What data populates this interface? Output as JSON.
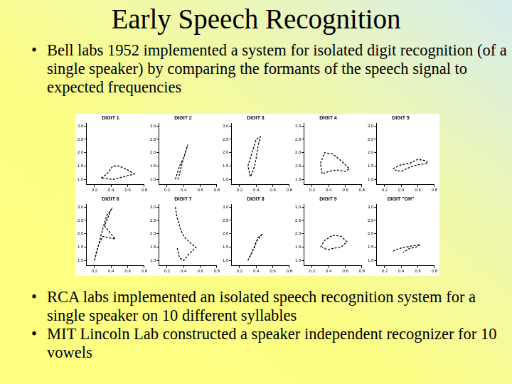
{
  "title": "Early Speech Recognition",
  "bullets": [
    "Bell labs 1952 implemented a system for isolated digit recognition (of a single speaker) by comparing the formants of the speech signal to expected frequencies",
    "RCA labs implemented an isolated speech recognition system for a single speaker on 10 different syllables",
    "MIT Lincoln Lab constructed a speaker independent recognizer for 10 vowels"
  ],
  "chart_data": [
    {
      "type": "line",
      "title": "DIGIT 1",
      "color": "#000000",
      "line_style": "dashed",
      "grid": false,
      "x": [
        0.28,
        0.35,
        0.42,
        0.5,
        0.6,
        0.68,
        0.55,
        0.42,
        0.3,
        0.28
      ],
      "values": [
        1.05,
        1.2,
        1.5,
        1.5,
        1.35,
        1.2,
        1.1,
        1.0,
        1.05,
        1.05
      ],
      "xlim": [
        0.1,
        0.8
      ],
      "xticks": [
        0.2,
        0.4,
        0.6,
        0.8
      ],
      "ylim": [
        0.8,
        3.1
      ],
      "yticks": [
        {
          "value": 1,
          "label": "1.0"
        },
        1.5,
        {
          "value": 2,
          "label": "2.0"
        },
        2.5,
        {
          "value": 3,
          "label": "3.0"
        }
      ]
    },
    {
      "type": "line",
      "title": "DIGIT 2",
      "color": "#000000",
      "line_style": "dashed",
      "grid": false,
      "x": [
        0.3,
        0.32,
        0.35,
        0.4,
        0.45,
        0.42,
        0.38,
        0.35,
        0.33
      ],
      "values": [
        1.0,
        1.2,
        1.5,
        1.8,
        2.3,
        2.0,
        1.6,
        1.2,
        1.0
      ],
      "xlim": [
        0.1,
        0.8
      ],
      "xticks": [
        0.2,
        0.4,
        0.6,
        0.8
      ],
      "ylim": [
        0.8,
        3.1
      ],
      "yticks": [
        {
          "value": 1,
          "label": "1.0"
        },
        1.5,
        {
          "value": 2,
          "label": "2.0"
        },
        2.5,
        {
          "value": 3,
          "label": "3.0"
        }
      ]
    },
    {
      "type": "line",
      "title": "DIGIT 3",
      "color": "#000000",
      "line_style": "dashed",
      "grid": false,
      "x": [
        0.3,
        0.35,
        0.4,
        0.45,
        0.42,
        0.4,
        0.38,
        0.36,
        0.33,
        0.3
      ],
      "values": [
        1.5,
        2.0,
        2.5,
        2.6,
        2.2,
        1.8,
        1.5,
        1.3,
        1.1,
        1.5
      ],
      "xlim": [
        0.1,
        0.8
      ],
      "xticks": [
        0.2,
        0.4,
        0.6,
        0.8
      ],
      "ylim": [
        0.8,
        3.1
      ],
      "yticks": [
        {
          "value": 1,
          "label": "1.0"
        },
        1.5,
        {
          "value": 2,
          "label": "2.0"
        },
        2.5,
        {
          "value": 3,
          "label": "3.0"
        }
      ]
    },
    {
      "type": "line",
      "title": "DIGIT 4",
      "color": "#000000",
      "line_style": "dashed",
      "grid": false,
      "x": [
        0.3,
        0.35,
        0.45,
        0.55,
        0.65,
        0.6,
        0.5,
        0.4,
        0.32,
        0.3
      ],
      "values": [
        1.6,
        2.0,
        1.95,
        1.7,
        1.4,
        1.3,
        1.35,
        1.3,
        1.2,
        1.6
      ],
      "xlim": [
        0.1,
        0.8
      ],
      "xticks": [
        0.2,
        0.4,
        0.6,
        0.8
      ],
      "ylim": [
        0.8,
        3.1
      ],
      "yticks": [
        {
          "value": 1,
          "label": "1.0"
        },
        1.5,
        {
          "value": 2,
          "label": "2.0"
        },
        2.5,
        {
          "value": 3,
          "label": "3.0"
        }
      ]
    },
    {
      "type": "line",
      "title": "DIGIT 5",
      "color": "#000000",
      "line_style": "dashed",
      "grid": false,
      "x": [
        0.3,
        0.4,
        0.5,
        0.6,
        0.7,
        0.72,
        0.6,
        0.5,
        0.4,
        0.32
      ],
      "values": [
        1.4,
        1.55,
        1.6,
        1.75,
        1.7,
        1.6,
        1.55,
        1.45,
        1.3,
        1.35
      ],
      "xlim": [
        0.1,
        0.8
      ],
      "xticks": [
        0.2,
        0.4,
        0.6,
        0.8
      ],
      "ylim": [
        0.8,
        3.1
      ],
      "yticks": [
        {
          "value": 1,
          "label": "1.0"
        },
        1.5,
        {
          "value": 2,
          "label": "2.0"
        },
        2.5,
        {
          "value": 3,
          "label": "3.0"
        }
      ]
    },
    {
      "type": "line",
      "title": "DIGIT 6",
      "color": "#000000",
      "line_style": "dashed",
      "grid": false,
      "x": [
        0.2,
        0.25,
        0.3,
        0.35,
        0.4,
        0.32,
        0.45,
        0.3,
        0.25,
        0.22,
        0.2
      ],
      "values": [
        1.0,
        1.6,
        2.2,
        2.7,
        2.9,
        2.3,
        1.8,
        1.9,
        1.6,
        1.3,
        1.0
      ],
      "xlim": [
        0.1,
        0.8
      ],
      "xticks": [
        0.2,
        0.4,
        0.6,
        0.8
      ],
      "ylim": [
        0.8,
        3.1
      ],
      "yticks": [
        {
          "value": 1,
          "label": "1.0"
        },
        1.5,
        {
          "value": 2,
          "label": "2.0"
        },
        2.5,
        {
          "value": 3,
          "label": "3.0"
        }
      ]
    },
    {
      "type": "line",
      "title": "DIGIT 7",
      "color": "#000000",
      "line_style": "dashed",
      "grid": false,
      "x": [
        0.3,
        0.32,
        0.36,
        0.4,
        0.5,
        0.55,
        0.45,
        0.4,
        0.35,
        0.32
      ],
      "values": [
        3.0,
        2.6,
        2.2,
        1.9,
        1.6,
        1.5,
        1.2,
        1.0,
        1.1,
        1.5
      ],
      "xlim": [
        0.1,
        0.8
      ],
      "xticks": [
        0.2,
        0.4,
        0.6,
        0.8
      ],
      "ylim": [
        0.8,
        3.1
      ],
      "yticks": [
        {
          "value": 1,
          "label": "1.0"
        },
        1.5,
        {
          "value": 2,
          "label": "2.0"
        },
        2.5,
        {
          "value": 3,
          "label": "3.0"
        }
      ]
    },
    {
      "type": "line",
      "title": "DIGIT 8",
      "color": "#000000",
      "line_style": "dashed",
      "grid": false,
      "x": [
        0.3,
        0.35,
        0.4,
        0.45,
        0.48,
        0.42,
        0.38,
        0.33,
        0.3
      ],
      "values": [
        1.0,
        1.3,
        1.7,
        1.9,
        2.0,
        1.85,
        1.5,
        1.2,
        1.0
      ],
      "xlim": [
        0.1,
        0.8
      ],
      "xticks": [
        0.2,
        0.4,
        0.6,
        0.8
      ],
      "ylim": [
        0.8,
        3.1
      ],
      "yticks": [
        {
          "value": 1,
          "label": "1.0"
        },
        1.5,
        {
          "value": 2,
          "label": "2.0"
        },
        2.5,
        {
          "value": 3,
          "label": "3.0"
        }
      ]
    },
    {
      "type": "line",
      "title": "DIGIT 9",
      "color": "#000000",
      "line_style": "dashed",
      "grid": false,
      "x": [
        0.3,
        0.35,
        0.45,
        0.55,
        0.62,
        0.55,
        0.45,
        0.38,
        0.32
      ],
      "values": [
        1.5,
        1.75,
        1.95,
        1.9,
        1.7,
        1.5,
        1.45,
        1.4,
        1.5
      ],
      "xlim": [
        0.1,
        0.8
      ],
      "xticks": [
        0.2,
        0.4,
        0.6,
        0.8
      ],
      "ylim": [
        0.8,
        3.1
      ],
      "yticks": [
        {
          "value": 1,
          "label": "1.0"
        },
        1.5,
        {
          "value": 2,
          "label": "2.0"
        },
        2.5,
        {
          "value": 3,
          "label": "3.0"
        }
      ]
    },
    {
      "type": "line",
      "title": "DIGIT \"OH\"",
      "color": "#000000",
      "line_style": "dashed",
      "grid": false,
      "x": [
        0.3,
        0.38,
        0.45,
        0.55,
        0.63,
        0.58,
        0.5,
        0.42
      ],
      "values": [
        1.35,
        1.45,
        1.5,
        1.55,
        1.6,
        1.5,
        1.45,
        1.3
      ],
      "xlim": [
        0.1,
        0.8
      ],
      "xticks": [
        0.2,
        0.4,
        0.6,
        0.8
      ],
      "ylim": [
        0.8,
        3.1
      ],
      "yticks": [
        {
          "value": 1,
          "label": "1.0"
        },
        1.5,
        {
          "value": 2,
          "label": "2.0"
        },
        2.5,
        {
          "value": 3,
          "label": "3.0"
        }
      ]
    }
  ]
}
